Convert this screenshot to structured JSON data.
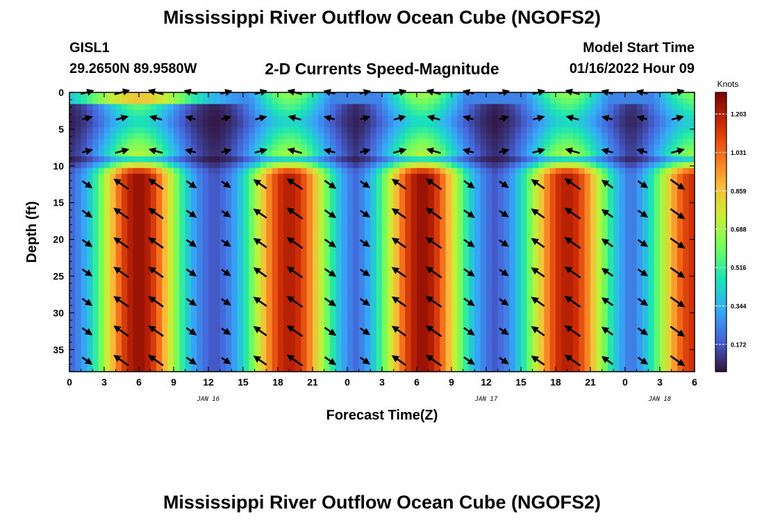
{
  "titles": {
    "main": "Mississippi River Outflow Ocean Cube (NGOFS2)",
    "bottom": "Mississippi River Outflow Ocean Cube (NGOFS2)"
  },
  "header": {
    "station": "GISL1",
    "coords": "29.2650N  89.9580W",
    "subtitle": "2-D Currents Speed-Magnitude",
    "model_label": "Model Start Time",
    "model_time": "01/16/2022 Hour 09"
  },
  "chart_data": {
    "type": "heatmap",
    "xlabel": "Forecast Time(Z)",
    "ylabel": "Depth (ft)",
    "x_tick_labels": [
      "0",
      "3",
      "6",
      "9",
      "12",
      "15",
      "18",
      "21",
      "0",
      "3",
      "6",
      "9",
      "12",
      "15",
      "18",
      "21",
      "0",
      "3",
      "6"
    ],
    "x_range_hours": [
      0,
      54
    ],
    "date_labels": [
      {
        "text": "JAN 16",
        "hour": 12
      },
      {
        "text": "JAN 17",
        "hour": 36
      },
      {
        "text": "JAN 18",
        "hour": 51
      }
    ],
    "y_ticks": [
      0,
      5,
      10,
      15,
      20,
      25,
      30,
      35
    ],
    "y_range": [
      0,
      38
    ],
    "y_inverted": true,
    "colorbar": {
      "label": "Knots",
      "ticks": [
        0.172,
        0.344,
        0.516,
        0.688,
        0.859,
        1.031,
        1.203
      ],
      "min": 0.05,
      "max": 1.3
    },
    "palette": [
      "#30123b",
      "#4662d7",
      "#36aaf9",
      "#1ae4b6",
      "#72fe5e",
      "#c8ef34",
      "#faba39",
      "#f66b19",
      "#ca2a04",
      "#7a0403"
    ],
    "description_of_field": "Speed magnitude vs depth and forecast hour; strong (~1.1-1.25 kn) currents below 10 ft in bands centred near hours 6, 19, 31, 43 and at the right edge; weak (<0.3 kn) bands near hours 12, 24, 36, 48; near-surface layers around 3-9 ft are weak to moderate.",
    "speed_bands": [
      {
        "center_hour": 6.0,
        "peak_knots": 1.25
      },
      {
        "center_hour": 19.0,
        "peak_knots": 1.2
      },
      {
        "center_hour": 30.5,
        "peak_knots": 1.25
      },
      {
        "center_hour": 43.0,
        "peak_knots": 1.2
      },
      {
        "center_hour": 54.0,
        "peak_knots": 1.15
      }
    ],
    "arrow_grid": {
      "hours": [
        1.5,
        4.5,
        7.5,
        10.5,
        13.5,
        16.5,
        19.5,
        22.5,
        25.5,
        28.5,
        31.5,
        34.5,
        37.5,
        40.5,
        43.5,
        46.5,
        49.5,
        52.5
      ],
      "depths_ft": [
        0,
        3.5,
        8,
        12.5,
        16.5,
        20.5,
        24.5,
        28.5,
        32.5,
        36.5
      ]
    }
  }
}
